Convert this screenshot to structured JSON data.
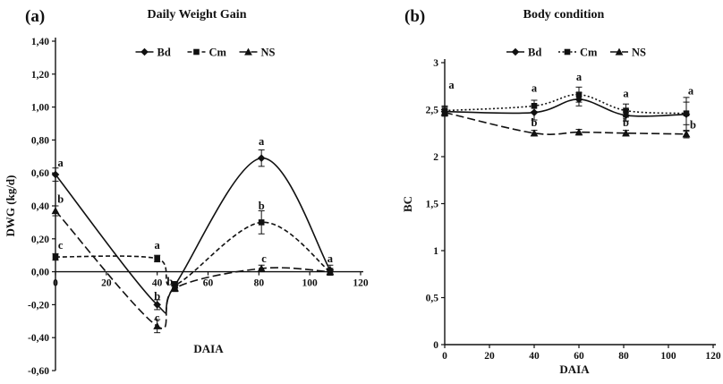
{
  "figure": {
    "background": "#ffffff",
    "ink": "#111111"
  },
  "chart_data": [
    {
      "type": "line",
      "panel_label": "(a)",
      "title": "Daily Weight Gain",
      "xlabel": "DAIA",
      "ylabel": "DWG (kg/d)",
      "xlim": [
        0,
        120
      ],
      "ylim": [
        -0.6,
        1.4
      ],
      "xticks": [
        0,
        20,
        40,
        60,
        80,
        100,
        120
      ],
      "ytick_values": [
        1.4,
        1.2,
        1.0,
        0.8,
        0.6,
        0.4,
        0.2,
        0.0,
        -0.2,
        -0.4,
        -0.6
      ],
      "ytick_labels": [
        "1,40",
        "1,20",
        "1,00",
        "0,80",
        "0,60",
        "0,40",
        "0,20",
        "0,00",
        "-0,20",
        "-0,40",
        "-0,60"
      ],
      "grid": false,
      "legend_position": "top-center",
      "x": [
        0,
        40,
        47,
        81,
        108
      ],
      "series": [
        {
          "name": "Bd",
          "marker": "diamond",
          "line_style": "solid",
          "values": [
            0.59,
            -0.2,
            -0.08,
            0.69,
            0.01
          ],
          "errors": [
            0.04,
            0.03,
            0.02,
            0.05,
            0.03
          ]
        },
        {
          "name": "Cm",
          "marker": "square",
          "line_style": "short-dash",
          "values": [
            0.09,
            0.08,
            -0.08,
            0.3,
            0.0
          ],
          "errors": [
            0.02,
            0.02,
            0.02,
            0.07,
            0.02
          ]
        },
        {
          "name": "NS",
          "marker": "triangle",
          "line_style": "long-dash",
          "values": [
            0.37,
            -0.33,
            -0.1,
            0.02,
            0.0
          ],
          "errors": [
            0.03,
            0.04,
            0.02,
            0.02,
            0.02
          ]
        }
      ],
      "annotations": [
        {
          "x": 2,
          "y": 0.66,
          "text": "a"
        },
        {
          "x": 2,
          "y": 0.44,
          "text": "b"
        },
        {
          "x": 2,
          "y": 0.16,
          "text": "c"
        },
        {
          "x": 40,
          "y": 0.16,
          "text": "a"
        },
        {
          "x": 45,
          "y": -0.06,
          "text": "b"
        },
        {
          "x": 40,
          "y": -0.15,
          "text": "b"
        },
        {
          "x": 40,
          "y": -0.28,
          "text": "c"
        },
        {
          "x": 81,
          "y": 0.79,
          "text": "a"
        },
        {
          "x": 81,
          "y": 0.4,
          "text": "b"
        },
        {
          "x": 82,
          "y": 0.08,
          "text": "c"
        },
        {
          "x": 108,
          "y": 0.08,
          "text": "a"
        }
      ]
    },
    {
      "type": "line",
      "panel_label": "(b)",
      "title": "Body condition",
      "xlabel": "DAIA",
      "ylabel": "BC",
      "xlim": [
        0,
        120
      ],
      "ylim": [
        0,
        3
      ],
      "xticks": [
        0,
        20,
        40,
        60,
        80,
        100,
        120
      ],
      "ytick_values": [
        3,
        2.5,
        2,
        1.5,
        1,
        0.5,
        0
      ],
      "ytick_labels": [
        "3",
        "2,5",
        "2",
        "1,5",
        "1",
        "0,5",
        "0"
      ],
      "grid": false,
      "legend_position": "top-center",
      "x": [
        0,
        40,
        60,
        81,
        108
      ],
      "series": [
        {
          "name": "Bd",
          "marker": "diamond",
          "line_style": "solid",
          "values": [
            2.48,
            2.47,
            2.61,
            2.44,
            2.45
          ],
          "errors": [
            0.05,
            0.08,
            0.07,
            0.06,
            0.18
          ]
        },
        {
          "name": "Cm",
          "marker": "square",
          "line_style": "dotted",
          "values": [
            2.49,
            2.54,
            2.66,
            2.49,
            2.46
          ],
          "errors": [
            0.05,
            0.06,
            0.08,
            0.07,
            0.12
          ]
        },
        {
          "name": "NS",
          "marker": "triangle",
          "line_style": "long-dash",
          "values": [
            2.47,
            2.25,
            2.26,
            2.25,
            2.24
          ],
          "errors": [
            0.03,
            0.03,
            0.03,
            0.03,
            0.04
          ]
        }
      ],
      "annotations": [
        {
          "x": 3,
          "y": 2.76,
          "text": "a"
        },
        {
          "x": 40,
          "y": 2.73,
          "text": "a"
        },
        {
          "x": 40,
          "y": 2.36,
          "text": "b"
        },
        {
          "x": 60,
          "y": 2.85,
          "text": "a"
        },
        {
          "x": 81,
          "y": 2.67,
          "text": "a"
        },
        {
          "x": 81,
          "y": 2.36,
          "text": "b"
        },
        {
          "x": 110,
          "y": 2.7,
          "text": "a"
        },
        {
          "x": 111,
          "y": 2.34,
          "text": "b"
        }
      ]
    }
  ]
}
